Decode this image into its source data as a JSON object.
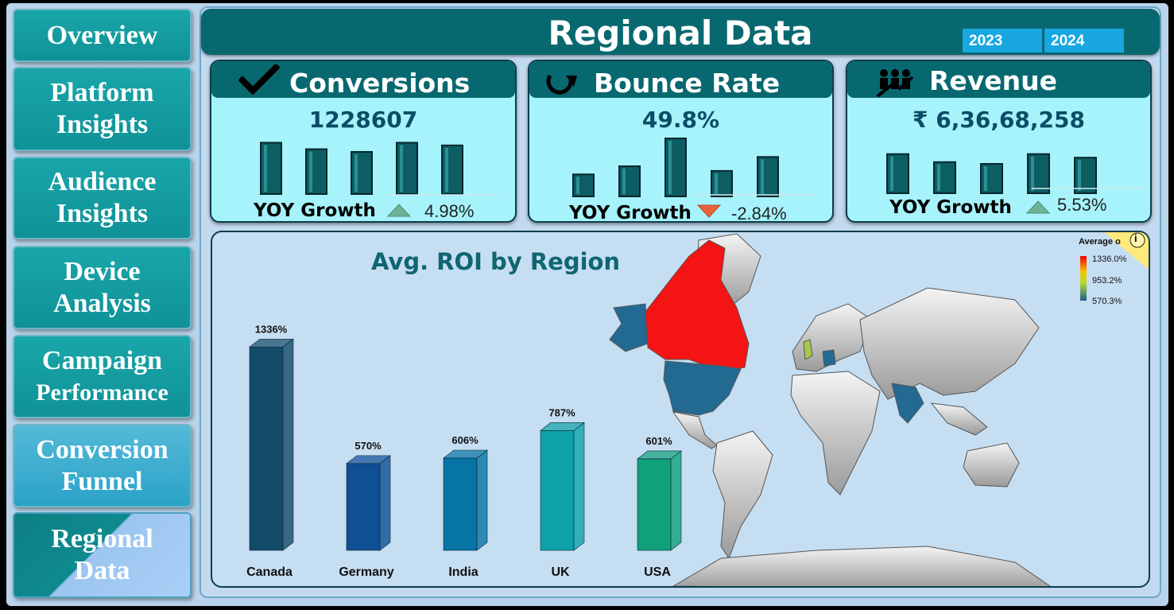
{
  "nav": {
    "items": [
      {
        "line1": "Overview",
        "line2": ""
      },
      {
        "line1": "Platform",
        "line2": "Insights"
      },
      {
        "line1": "Audience",
        "line2": "Insights"
      },
      {
        "line1": "Device",
        "line2": "Analysis"
      },
      {
        "line1": "Campaign",
        "line2": "Performance"
      },
      {
        "line1": "Conversion",
        "line2": "Funnel"
      },
      {
        "line1": "Regional",
        "line2": "Data"
      }
    ],
    "active": "Regional Data"
  },
  "header": {
    "title": "Regional Data",
    "years": [
      "2023",
      "2024"
    ]
  },
  "kpis": [
    {
      "title": "Conversions",
      "icon": "check-icon",
      "value": "1228607",
      "yoy_label": "YOY Growth",
      "yoy_value": "4.98%",
      "trend": "up",
      "bar_levels": [
        0.95,
        0.83,
        0.78,
        0.95,
        0.9
      ]
    },
    {
      "title": "Bounce Rate",
      "icon": "refresh-arrow-icon",
      "value": "49.8%",
      "yoy_label": "YOY Growth",
      "yoy_value": "-2.84%",
      "trend": "down",
      "bar_levels": [
        0.38,
        0.52,
        1.0,
        0.44,
        0.68
      ]
    },
    {
      "title": "Revenue",
      "icon": "people-growth-icon",
      "value": "₹ 6,36,68,258",
      "yoy_label": "YOY Growth",
      "yoy_value": "5.53%",
      "trend": "up",
      "bar_levels": [
        0.88,
        0.7,
        0.66,
        0.88,
        0.8
      ]
    }
  ],
  "colors": {
    "header": "#086870",
    "card_bg": "#a6f3fb",
    "bar": "#0c5e63",
    "up": "#6fb394",
    "down": "#e8643a",
    "year_button": "#18a7e0"
  },
  "chart_data": {
    "type": "bar",
    "title": "Avg. ROI by Region",
    "categories": [
      "Canada",
      "Germany",
      "India",
      "UK",
      "USA"
    ],
    "values": [
      1336,
      570,
      606,
      787,
      601
    ],
    "data_labels": [
      "1336%",
      "570%",
      "606%",
      "787%",
      "601%"
    ],
    "ylim": [
      0,
      1400
    ],
    "grid": false,
    "colors": [
      "#134a68",
      "#0f4f95",
      "#0674a4",
      "#0ea2a8",
      "#10a07a"
    ]
  },
  "map_legend": {
    "title": "Average o",
    "max": "1336.0%",
    "mid": "953.2%",
    "min": "570.3%"
  },
  "info_icon": "i"
}
